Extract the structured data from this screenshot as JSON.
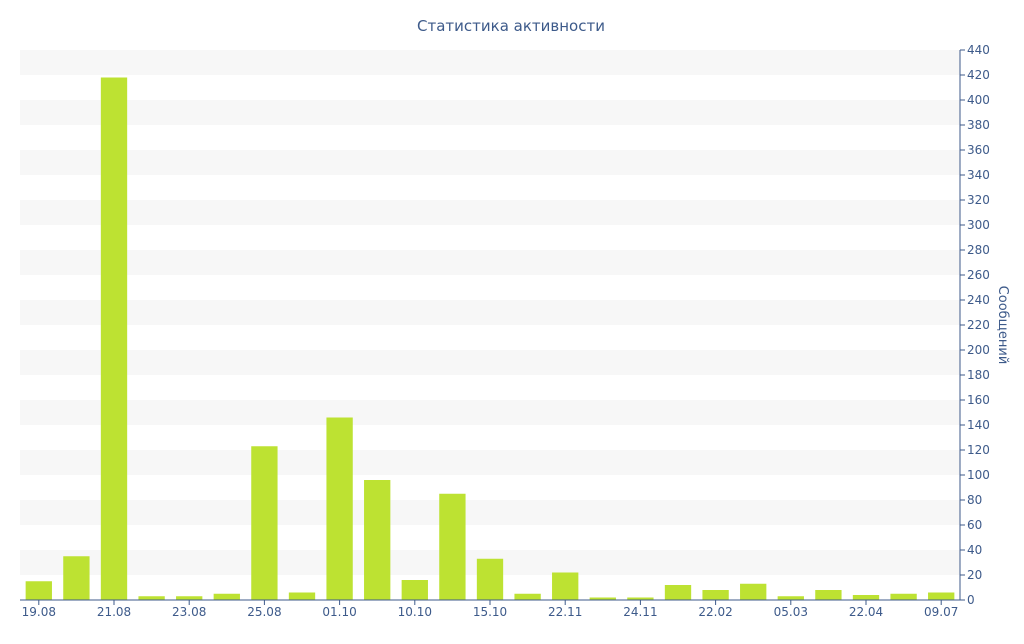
{
  "chart_data": {
    "type": "bar",
    "title": "Статистика активности",
    "xlabel": "",
    "ylabel": "Сообщений",
    "ylim": [
      0,
      440
    ],
    "y_tick_step": 20,
    "y_axis_side": "right",
    "grid": "alternating horizontal bands",
    "bar_color": "#bde232",
    "band_color": "#f7f7f7",
    "axis_color": "#3d5a8a",
    "values": [
      15,
      35,
      418,
      3,
      3,
      5,
      123,
      6,
      146,
      96,
      16,
      85,
      33,
      5,
      22,
      2,
      2,
      12,
      8,
      13,
      3,
      8,
      4,
      5,
      6
    ],
    "x_tick_labels": [
      {
        "index": 0,
        "label": "19.08"
      },
      {
        "index": 2,
        "label": "21.08"
      },
      {
        "index": 4,
        "label": "23.08"
      },
      {
        "index": 6,
        "label": "25.08"
      },
      {
        "index": 8,
        "label": "01.10"
      },
      {
        "index": 10,
        "label": "10.10"
      },
      {
        "index": 12,
        "label": "15.10"
      },
      {
        "index": 14,
        "label": "22.11"
      },
      {
        "index": 16,
        "label": "24.11"
      },
      {
        "index": 18,
        "label": "22.02"
      },
      {
        "index": 20,
        "label": "05.03"
      },
      {
        "index": 22,
        "label": "22.04"
      },
      {
        "index": 24,
        "label": "09.07"
      }
    ]
  }
}
